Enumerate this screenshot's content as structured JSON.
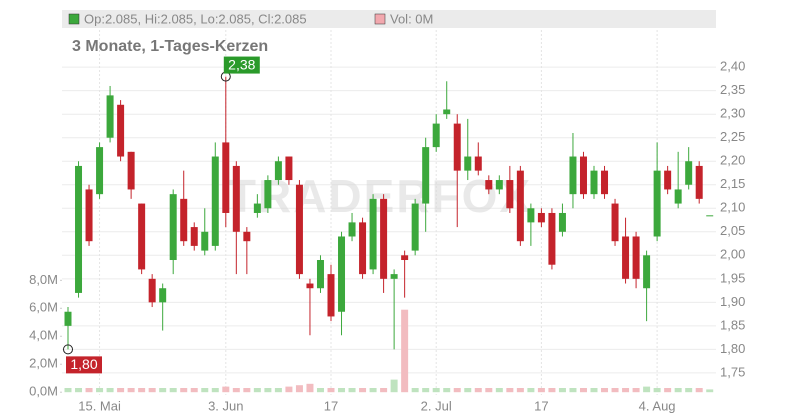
{
  "chart_data": {
    "type": "candlestick",
    "header": {
      "ohlc": "Op:2.085, Hi:2.085, Lo:2.085, Cl:2.085",
      "volume": "Vol: 0M"
    },
    "title": "3 Monate, 1-Tages-Kerzen",
    "watermark": "TRADERFOX",
    "up_color": "#3ca83c",
    "down_color": "#c4232b",
    "volume_up_color": "#bfe3bf",
    "volume_down_color": "#f2bcc0",
    "grid": true,
    "categories": [
      null,
      null,
      null,
      "15. Mai",
      null,
      null,
      null,
      null,
      null,
      null,
      null,
      null,
      null,
      null,
      null,
      "3. Jun",
      null,
      null,
      null,
      null,
      null,
      null,
      null,
      null,
      null,
      "17",
      null,
      null,
      null,
      null,
      null,
      null,
      null,
      null,
      null,
      "2. Jul",
      null,
      null,
      null,
      null,
      null,
      null,
      null,
      null,
      null,
      "17",
      null,
      null,
      null,
      null,
      null,
      null,
      null,
      null,
      null,
      null,
      "4. Aug",
      null,
      null,
      null,
      null,
      null
    ],
    "open": [
      1.85,
      1.92,
      2.14,
      2.13,
      2.25,
      2.32,
      2.22,
      2.11,
      1.95,
      1.9,
      1.99,
      2.12,
      2.06,
      2.01,
      2.02,
      2.24,
      2.19,
      2.05,
      2.09,
      2.1,
      2.16,
      2.21,
      2.15,
      1.94,
      1.93,
      1.96,
      1.88,
      2.04,
      2.07,
      1.97,
      2.12,
      1.95,
      2.0,
      2.01,
      2.11,
      2.23,
      2.3,
      2.28,
      2.18,
      2.21,
      2.16,
      2.14,
      2.16,
      2.18,
      2.07,
      2.09,
      2.09,
      2.05,
      2.13,
      2.21,
      2.13,
      2.18,
      2.11,
      2.04,
      2.04,
      1.93,
      2.04,
      2.18,
      2.11,
      2.15,
      2.19,
      2.085
    ],
    "high": [
      1.89,
      2.2,
      2.15,
      2.24,
      2.36,
      2.33,
      2.22,
      2.11,
      1.96,
      1.94,
      2.14,
      2.18,
      2.07,
      2.1,
      2.24,
      2.38,
      2.2,
      2.06,
      2.13,
      2.17,
      2.21,
      2.21,
      2.16,
      1.95,
      2.0,
      1.98,
      2.05,
      2.09,
      2.08,
      2.13,
      2.13,
      1.97,
      2.01,
      2.12,
      2.25,
      2.3,
      2.37,
      2.3,
      2.29,
      2.24,
      2.17,
      2.17,
      2.19,
      2.19,
      2.11,
      2.1,
      2.1,
      2.11,
      2.26,
      2.22,
      2.19,
      2.19,
      2.12,
      2.08,
      2.05,
      2.01,
      2.24,
      2.19,
      2.22,
      2.23,
      2.2,
      2.085
    ],
    "low": [
      1.8,
      1.91,
      2.02,
      2.12,
      2.24,
      2.2,
      2.12,
      1.96,
      1.89,
      1.84,
      1.96,
      2.02,
      2.01,
      2.0,
      2.01,
      2.06,
      1.96,
      1.96,
      2.08,
      2.09,
      2.15,
      2.15,
      1.95,
      1.83,
      1.92,
      1.86,
      1.83,
      2.03,
      1.95,
      1.96,
      1.92,
      1.8,
      1.91,
      2.0,
      2.05,
      2.22,
      2.29,
      2.06,
      2.16,
      2.17,
      2.13,
      2.13,
      2.09,
      2.02,
      2.02,
      2.06,
      1.97,
      2.04,
      2.1,
      2.12,
      2.12,
      2.12,
      2.02,
      1.94,
      1.93,
      1.86,
      2.03,
      2.13,
      2.1,
      2.14,
      2.11,
      2.085
    ],
    "close": [
      1.88,
      2.19,
      2.03,
      2.23,
      2.34,
      2.21,
      2.14,
      1.97,
      1.9,
      1.93,
      2.13,
      2.03,
      2.02,
      2.05,
      2.21,
      2.09,
      2.05,
      2.03,
      2.11,
      2.16,
      2.2,
      2.16,
      1.96,
      1.93,
      1.99,
      1.87,
      2.04,
      2.07,
      1.96,
      2.12,
      1.95,
      1.96,
      1.99,
      2.11,
      2.23,
      2.28,
      2.31,
      2.18,
      2.21,
      2.18,
      2.14,
      2.16,
      2.1,
      2.03,
      2.1,
      2.07,
      1.98,
      2.09,
      2.21,
      2.13,
      2.18,
      2.13,
      2.03,
      1.95,
      1.95,
      2.0,
      2.18,
      2.14,
      2.14,
      2.2,
      2.12,
      2.085
    ],
    "volume": [
      0.3,
      0.3,
      0.3,
      0.3,
      0.3,
      0.3,
      0.3,
      0.3,
      0.3,
      0.3,
      0.3,
      0.3,
      0.3,
      0.3,
      0.3,
      0.4,
      0.3,
      0.3,
      0.3,
      0.3,
      0.3,
      0.4,
      0.5,
      0.6,
      0.3,
      0.3,
      0.3,
      0.3,
      0.3,
      0.3,
      0.3,
      0.9,
      5.9,
      0.3,
      0.3,
      0.3,
      0.3,
      0.3,
      0.3,
      0.3,
      0.3,
      0.3,
      0.3,
      0.3,
      0.3,
      0.3,
      0.3,
      0.3,
      0.3,
      0.3,
      0.3,
      0.3,
      0.3,
      0.3,
      0.3,
      0.4,
      0.3,
      0.3,
      0.3,
      0.3,
      0.3,
      0.2
    ],
    "ylim": [
      1.703,
      2.479
    ],
    "yticks": [
      {
        "value": 1.75,
        "label": "1,75"
      },
      {
        "value": 1.8,
        "label": "1,80"
      },
      {
        "value": 1.85,
        "label": "1,85"
      },
      {
        "value": 1.9,
        "label": "1,90"
      },
      {
        "value": 1.95,
        "label": "1,95"
      },
      {
        "value": 2.0,
        "label": "2,00"
      },
      {
        "value": 2.05,
        "label": "2,05"
      },
      {
        "value": 2.1,
        "label": "2,10"
      },
      {
        "value": 2.15,
        "label": "2,15"
      },
      {
        "value": 2.2,
        "label": "2,20"
      },
      {
        "value": 2.25,
        "label": "2,25"
      },
      {
        "value": 2.3,
        "label": "2,30"
      },
      {
        "value": 2.35,
        "label": "2,35"
      },
      {
        "value": 2.4,
        "label": "2,40"
      }
    ],
    "y2lim": [
      -0.2,
      25.9
    ],
    "y2ticks": [
      {
        "value": 0,
        "label": "0,0M"
      },
      {
        "value": 2,
        "label": "2,0M"
      },
      {
        "value": 4,
        "label": "4,0M"
      },
      {
        "value": 6,
        "label": "6,0M"
      },
      {
        "value": 8,
        "label": "8,0M"
      }
    ],
    "annotations": [
      {
        "value": 2.38,
        "label": "2,38",
        "color": "#2a9a2a"
      },
      {
        "value": 1.8,
        "label": "1,80",
        "color": "#c4232b"
      }
    ]
  }
}
